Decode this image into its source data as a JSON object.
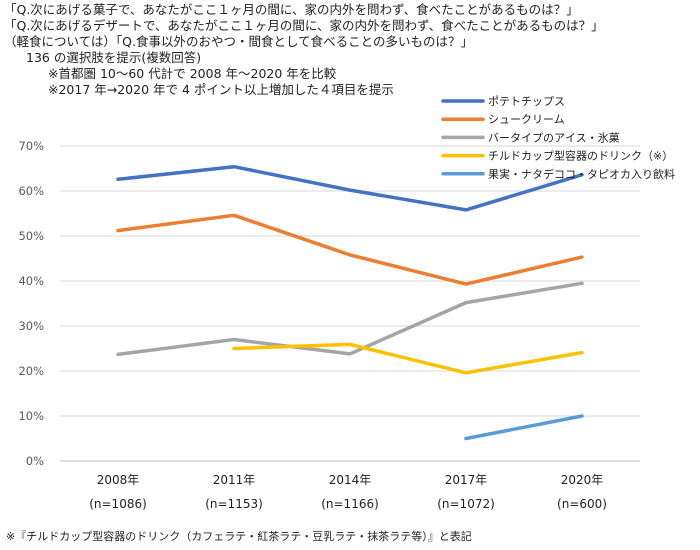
{
  "header": {
    "q1": "「Q.次にあげる菓子で、あなたがここ１ヶ月の間に、家の内外を問わず、食べたことがあるものは？」",
    "q2": "「Q.次にあげるデザートで、あなたがここ１ヶ月の間に、家の内外を問わず、食べたことがあるものは？」",
    "q3": "（軽食については）「Q.食事以外のおやつ・間食として食べることの多いものは？」",
    "n1": "136 の選択肢を提示(複数回答)",
    "n2": "※首都圏 10～60 代計で 2008 年～2020 年を比較",
    "n3": "※2017 年→2020 年で 4 ポイント以上増加した４項目を提示"
  },
  "footnote": "※『チルドカップ型容器のドリンク（カフェラテ・紅茶ラテ・豆乳ラテ・抹茶ラテ等）』と表記",
  "chart_data": {
    "type": "line",
    "x": [
      "2008年",
      "2011年",
      "2014年",
      "2017年",
      "2020年"
    ],
    "x_sub": [
      "(n=1086)",
      "(n=1153)",
      "(n=1166)",
      "(n=1072)",
      "(n=600)"
    ],
    "y_ticks": [
      "0%",
      "10%",
      "20%",
      "30%",
      "40%",
      "50%",
      "60%",
      "70%"
    ],
    "ylim": [
      0,
      70
    ],
    "grid": true,
    "legend_position": "top-right",
    "series": [
      {
        "name": "ポテトチップス",
        "color": "#4472C4",
        "values": [
          62.6,
          65.4,
          60.2,
          55.8,
          63.6
        ]
      },
      {
        "name": "シュークリーム",
        "color": "#ED7D31",
        "values": [
          51.2,
          54.6,
          45.8,
          39.3,
          45.3
        ]
      },
      {
        "name": "バータイプのアイス・氷菓",
        "color": "#A5A5A5",
        "values": [
          23.7,
          27.0,
          23.8,
          35.2,
          39.5
        ]
      },
      {
        "name": "チルドカップ型容器のドリンク（※）",
        "color": "#FFC000",
        "values": [
          null,
          25.0,
          25.9,
          19.6,
          24.1
        ]
      },
      {
        "name": "果実・ナタデココ・タピオカ入り飲料",
        "color": "#5B9BD5",
        "values": [
          null,
          null,
          null,
          5.0,
          10.0
        ]
      }
    ]
  }
}
